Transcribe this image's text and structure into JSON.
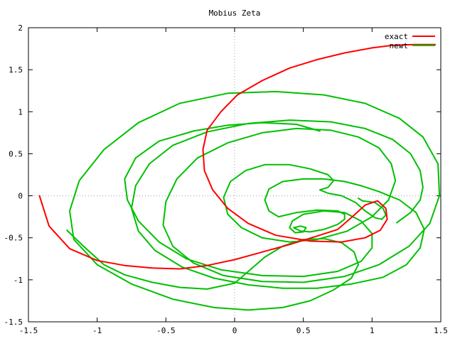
{
  "chart_data": {
    "type": "line",
    "title": "Mobius Zeta",
    "xlabel": "",
    "ylabel": "",
    "xlim": [
      -1.5,
      1.5
    ],
    "ylim": [
      -1.5,
      2
    ],
    "xticks": [
      -1.5,
      -1,
      -0.5,
      0,
      0.5,
      1,
      1.5
    ],
    "xtick_labels": [
      "-1.5",
      "-1",
      "-0.5",
      "0",
      "0.5",
      "1",
      "1.5"
    ],
    "yticks": [
      -1.5,
      -1,
      -0.5,
      0,
      0.5,
      1,
      1.5,
      2
    ],
    "ytick_labels": [
      "-1.5",
      "-1",
      "-0.5",
      "0",
      "0.5",
      "1",
      "1.5",
      "2"
    ],
    "grid": "zero-axes-dotted",
    "legend": "top-right",
    "series": [
      {
        "name": "exact",
        "color": "#ff0000",
        "points": [
          [
            -1.42,
            0.0
          ],
          [
            -1.35,
            -0.36
          ],
          [
            -1.2,
            -0.63
          ],
          [
            -1.0,
            -0.77
          ],
          [
            -0.8,
            -0.83
          ],
          [
            -0.6,
            -0.86
          ],
          [
            -0.4,
            -0.87
          ],
          [
            -0.2,
            -0.83
          ],
          [
            0.0,
            -0.76
          ],
          [
            0.2,
            -0.67
          ],
          [
            0.4,
            -0.58
          ],
          [
            0.6,
            -0.48
          ],
          [
            0.75,
            -0.4
          ],
          [
            0.85,
            -0.26
          ],
          [
            0.95,
            -0.11
          ],
          [
            1.04,
            -0.06
          ],
          [
            1.1,
            -0.15
          ],
          [
            1.11,
            -0.28
          ],
          [
            1.06,
            -0.41
          ],
          [
            0.95,
            -0.5
          ],
          [
            0.78,
            -0.55
          ],
          [
            0.55,
            -0.54
          ],
          [
            0.3,
            -0.47
          ],
          [
            0.1,
            -0.33
          ],
          [
            -0.05,
            -0.15
          ],
          [
            -0.16,
            0.07
          ],
          [
            -0.22,
            0.3
          ],
          [
            -0.23,
            0.55
          ],
          [
            -0.2,
            0.78
          ],
          [
            -0.1,
            1.0
          ],
          [
            0.02,
            1.2
          ],
          [
            0.2,
            1.37
          ],
          [
            0.4,
            1.52
          ],
          [
            0.6,
            1.62
          ],
          [
            0.8,
            1.7
          ],
          [
            1.0,
            1.76
          ],
          [
            1.15,
            1.79
          ],
          [
            1.3,
            1.8
          ],
          [
            1.46,
            1.8
          ]
        ]
      },
      {
        "name": "newt",
        "color": "#00c000",
        "points": [
          [
            -1.22,
            -0.41
          ],
          [
            -1.1,
            -0.6
          ],
          [
            -0.95,
            -0.82
          ],
          [
            -0.8,
            -0.94
          ],
          [
            -0.6,
            -1.03
          ],
          [
            -0.4,
            -1.09
          ],
          [
            -0.2,
            -1.11
          ],
          [
            0.0,
            -1.04
          ],
          [
            0.1,
            -0.9
          ],
          [
            0.22,
            -0.73
          ],
          [
            0.35,
            -0.6
          ],
          [
            0.5,
            -0.52
          ],
          [
            0.65,
            -0.51
          ],
          [
            0.78,
            -0.56
          ],
          [
            0.87,
            -0.67
          ],
          [
            0.9,
            -0.82
          ],
          [
            0.85,
            -0.98
          ],
          [
            0.72,
            -1.12
          ],
          [
            0.55,
            -1.25
          ],
          [
            0.35,
            -1.33
          ],
          [
            0.1,
            -1.36
          ],
          [
            -0.15,
            -1.33
          ],
          [
            -0.45,
            -1.23
          ],
          [
            -0.75,
            -1.05
          ],
          [
            -1.0,
            -0.82
          ],
          [
            -1.17,
            -0.52
          ],
          [
            -1.2,
            -0.18
          ],
          [
            -1.13,
            0.18
          ],
          [
            -0.95,
            0.55
          ],
          [
            -0.7,
            0.87
          ],
          [
            -0.4,
            1.1
          ],
          [
            -0.05,
            1.22
          ],
          [
            0.3,
            1.24
          ],
          [
            0.65,
            1.2
          ],
          [
            0.95,
            1.1
          ],
          [
            1.2,
            0.92
          ],
          [
            1.37,
            0.7
          ],
          [
            1.48,
            0.38
          ],
          [
            1.49,
            0.0
          ],
          [
            1.42,
            -0.33
          ],
          [
            1.27,
            -0.6
          ],
          [
            1.05,
            -0.82
          ],
          [
            0.8,
            -0.96
          ],
          [
            0.5,
            -1.03
          ],
          [
            0.2,
            -1.02
          ],
          [
            -0.08,
            -0.95
          ],
          [
            -0.3,
            -0.8
          ],
          [
            -0.45,
            -0.6
          ],
          [
            -0.52,
            -0.35
          ],
          [
            -0.5,
            -0.07
          ],
          [
            -0.42,
            0.2
          ],
          [
            -0.27,
            0.45
          ],
          [
            -0.05,
            0.63
          ],
          [
            0.2,
            0.75
          ],
          [
            0.45,
            0.8
          ],
          [
            0.7,
            0.78
          ],
          [
            0.9,
            0.7
          ],
          [
            1.05,
            0.57
          ],
          [
            1.14,
            0.38
          ],
          [
            1.17,
            0.18
          ],
          [
            1.12,
            -0.05
          ],
          [
            1.0,
            -0.25
          ],
          [
            0.82,
            -0.42
          ],
          [
            0.6,
            -0.52
          ],
          [
            0.4,
            -0.55
          ],
          [
            0.2,
            -0.5
          ],
          [
            0.05,
            -0.38
          ],
          [
            -0.05,
            -0.22
          ],
          [
            -0.08,
            -0.02
          ],
          [
            -0.03,
            0.17
          ],
          [
            0.08,
            0.3
          ],
          [
            0.22,
            0.37
          ],
          [
            0.4,
            0.37
          ],
          [
            0.55,
            0.32
          ],
          [
            0.68,
            0.25
          ],
          [
            0.72,
            0.18
          ],
          [
            0.68,
            0.1
          ],
          [
            0.62,
            0.07
          ],
          [
            0.68,
            0.03
          ],
          [
            0.78,
            0.0
          ],
          [
            0.88,
            -0.08
          ],
          [
            0.95,
            -0.18
          ],
          [
            1.02,
            -0.26
          ],
          [
            1.07,
            -0.28
          ],
          [
            1.1,
            -0.23
          ],
          [
            1.08,
            -0.15
          ],
          [
            1.02,
            -0.08
          ],
          [
            0.93,
            -0.06
          ],
          [
            0.9,
            -0.03
          ]
        ]
      },
      {
        "name": "",
        "color": "#00c000",
        "points": [
          [
            0.62,
            0.77
          ],
          [
            0.45,
            0.85
          ],
          [
            0.2,
            0.87
          ],
          [
            -0.05,
            0.84
          ],
          [
            -0.3,
            0.77
          ],
          [
            -0.55,
            0.65
          ],
          [
            -0.72,
            0.45
          ],
          [
            -0.8,
            0.2
          ],
          [
            -0.78,
            -0.05
          ],
          [
            -0.7,
            -0.3
          ],
          [
            -0.55,
            -0.55
          ],
          [
            -0.35,
            -0.75
          ],
          [
            -0.1,
            -0.88
          ],
          [
            0.2,
            -0.95
          ],
          [
            0.5,
            -0.96
          ],
          [
            0.75,
            -0.9
          ],
          [
            0.92,
            -0.78
          ],
          [
            1.0,
            -0.62
          ],
          [
            1.0,
            -0.45
          ],
          [
            0.92,
            -0.3
          ],
          [
            0.8,
            -0.2
          ],
          [
            0.65,
            -0.18
          ],
          [
            0.5,
            -0.22
          ],
          [
            0.42,
            -0.3
          ],
          [
            0.4,
            -0.38
          ],
          [
            0.44,
            -0.44
          ],
          [
            0.5,
            -0.43
          ],
          [
            0.52,
            -0.38
          ],
          [
            0.48,
            -0.36
          ],
          [
            0.43,
            -0.38
          ],
          [
            0.48,
            -0.42
          ],
          [
            0.55,
            -0.43
          ],
          [
            0.65,
            -0.4
          ],
          [
            0.75,
            -0.34
          ],
          [
            0.8,
            -0.28
          ],
          [
            0.8,
            -0.22
          ],
          [
            0.75,
            -0.18
          ],
          [
            0.6,
            -0.17
          ],
          [
            0.45,
            -0.2
          ],
          [
            0.32,
            -0.25
          ],
          [
            0.25,
            -0.18
          ],
          [
            0.22,
            -0.05
          ],
          [
            0.25,
            0.08
          ],
          [
            0.35,
            0.17
          ],
          [
            0.5,
            0.2
          ],
          [
            0.65,
            0.2
          ],
          [
            0.8,
            0.17
          ],
          [
            0.92,
            0.12
          ],
          [
            1.05,
            0.05
          ],
          [
            1.2,
            -0.05
          ],
          [
            1.32,
            -0.2
          ],
          [
            1.38,
            -0.4
          ],
          [
            1.35,
            -0.62
          ],
          [
            1.25,
            -0.82
          ],
          [
            1.08,
            -0.97
          ],
          [
            0.85,
            -1.05
          ],
          [
            0.6,
            -1.1
          ],
          [
            0.35,
            -1.1
          ],
          [
            0.1,
            -1.06
          ],
          [
            -0.15,
            -0.98
          ],
          [
            -0.38,
            -0.85
          ],
          [
            -0.58,
            -0.65
          ],
          [
            -0.7,
            -0.42
          ],
          [
            -0.75,
            -0.15
          ],
          [
            -0.72,
            0.12
          ],
          [
            -0.62,
            0.38
          ],
          [
            -0.45,
            0.6
          ],
          [
            -0.2,
            0.76
          ],
          [
            0.1,
            0.86
          ],
          [
            0.4,
            0.9
          ],
          [
            0.7,
            0.88
          ],
          [
            0.95,
            0.8
          ],
          [
            1.15,
            0.67
          ],
          [
            1.28,
            0.5
          ],
          [
            1.35,
            0.3
          ],
          [
            1.37,
            0.1
          ],
          [
            1.35,
            -0.05
          ],
          [
            1.28,
            -0.2
          ],
          [
            1.18,
            -0.32
          ]
        ]
      }
    ]
  }
}
